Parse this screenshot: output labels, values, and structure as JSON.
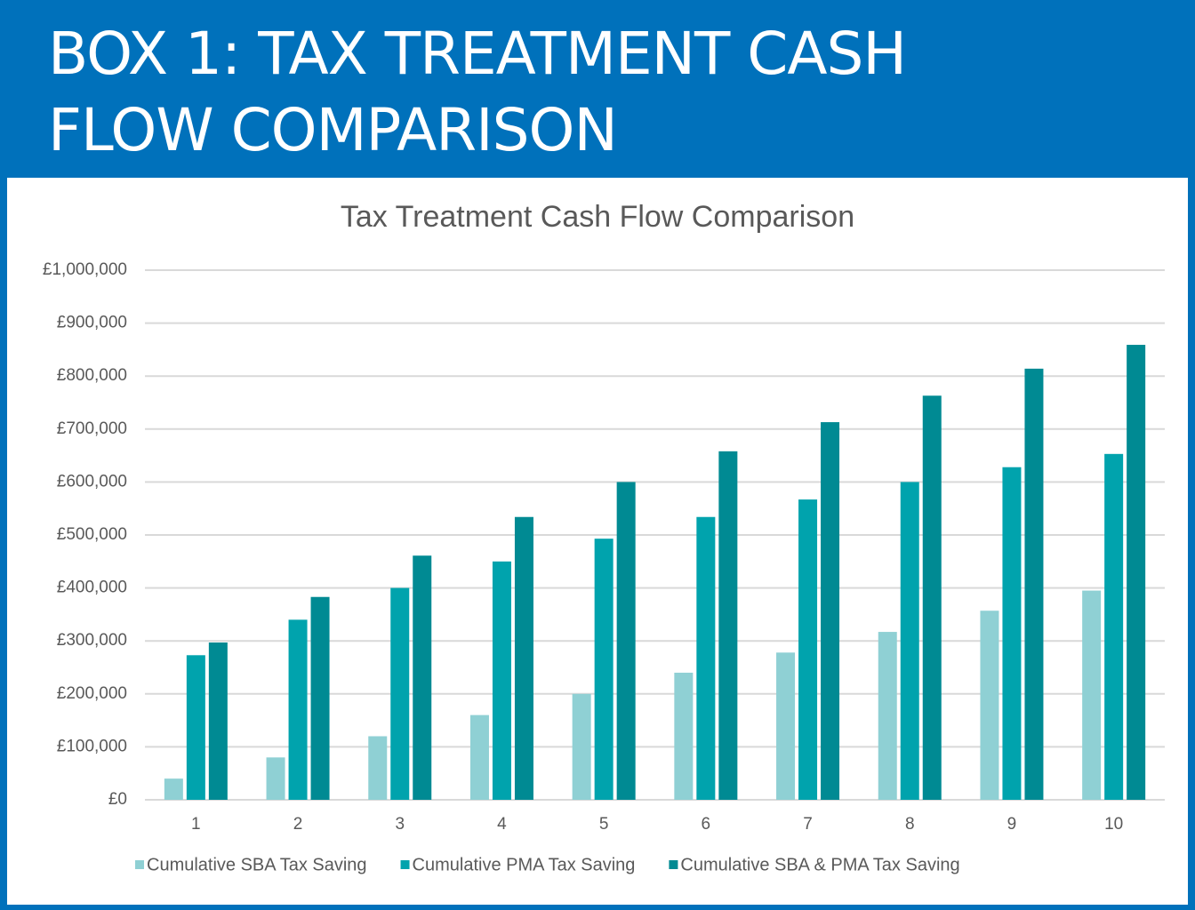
{
  "header": {
    "title": "BOX 1: TAX TREATMENT CASH FLOW COMPARISON"
  },
  "chart_data": {
    "type": "bar",
    "title": "Tax Treatment Cash Flow Comparison",
    "categories": [
      "1",
      "2",
      "3",
      "4",
      "5",
      "6",
      "7",
      "8",
      "9",
      "10"
    ],
    "series": [
      {
        "name": "Cumulative SBA Tax Saving",
        "color": "#8fd0d4",
        "values": [
          40000,
          80000,
          120000,
          160000,
          200000,
          240000,
          278000,
          317000,
          357000,
          395000
        ]
      },
      {
        "name": "Cumulative PMA Tax Saving",
        "color": "#00a3ad",
        "values": [
          273000,
          340000,
          400000,
          450000,
          493000,
          534000,
          567000,
          600000,
          628000,
          653000
        ]
      },
      {
        "name": "Cumulative SBA & PMA Tax Saving",
        "color": "#008a93",
        "values": [
          297000,
          383000,
          461000,
          534000,
          600000,
          658000,
          713000,
          763000,
          814000,
          859000
        ]
      }
    ],
    "ylim": [
      0,
      1000000
    ],
    "yticks": [
      {
        "value": 0,
        "label": "£0"
      },
      {
        "value": 100000,
        "label": "£100,000"
      },
      {
        "value": 200000,
        "label": "£200,000"
      },
      {
        "value": 300000,
        "label": "£300,000"
      },
      {
        "value": 400000,
        "label": "£400,000"
      },
      {
        "value": 500000,
        "label": "£500,000"
      },
      {
        "value": 600000,
        "label": "£600,000"
      },
      {
        "value": 700000,
        "label": "£700,000"
      },
      {
        "value": 800000,
        "label": "£800,000"
      },
      {
        "value": 900000,
        "label": "£900,000"
      },
      {
        "value": 1000000,
        "label": "£1,000,000"
      }
    ],
    "grid": true,
    "legend": "bottom"
  }
}
